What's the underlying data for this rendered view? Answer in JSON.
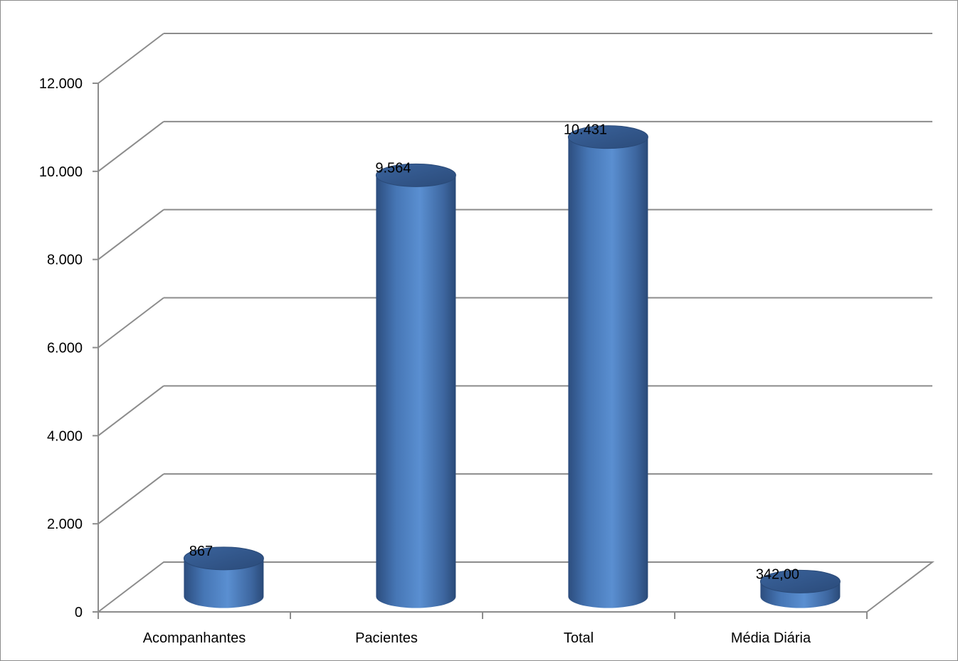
{
  "chart_data": {
    "type": "bar",
    "style": "3d-cylinder",
    "categories": [
      "Acompanhantes",
      "Pacientes",
      "Total",
      "Média Diária"
    ],
    "values": [
      867,
      9564,
      10431,
      342
    ],
    "data_labels": [
      "867",
      "9.564",
      "10.431",
      "342,00"
    ],
    "y_ticks": [
      0,
      2000,
      4000,
      6000,
      8000,
      10000,
      12000
    ],
    "y_tick_labels": [
      "0",
      "2.000",
      "4.000",
      "6.000",
      "8.000",
      "10.000",
      "12.000"
    ],
    "ylim": [
      0,
      12000
    ],
    "grid": true,
    "legend": "none",
    "bar_color": "#4f81bd"
  }
}
